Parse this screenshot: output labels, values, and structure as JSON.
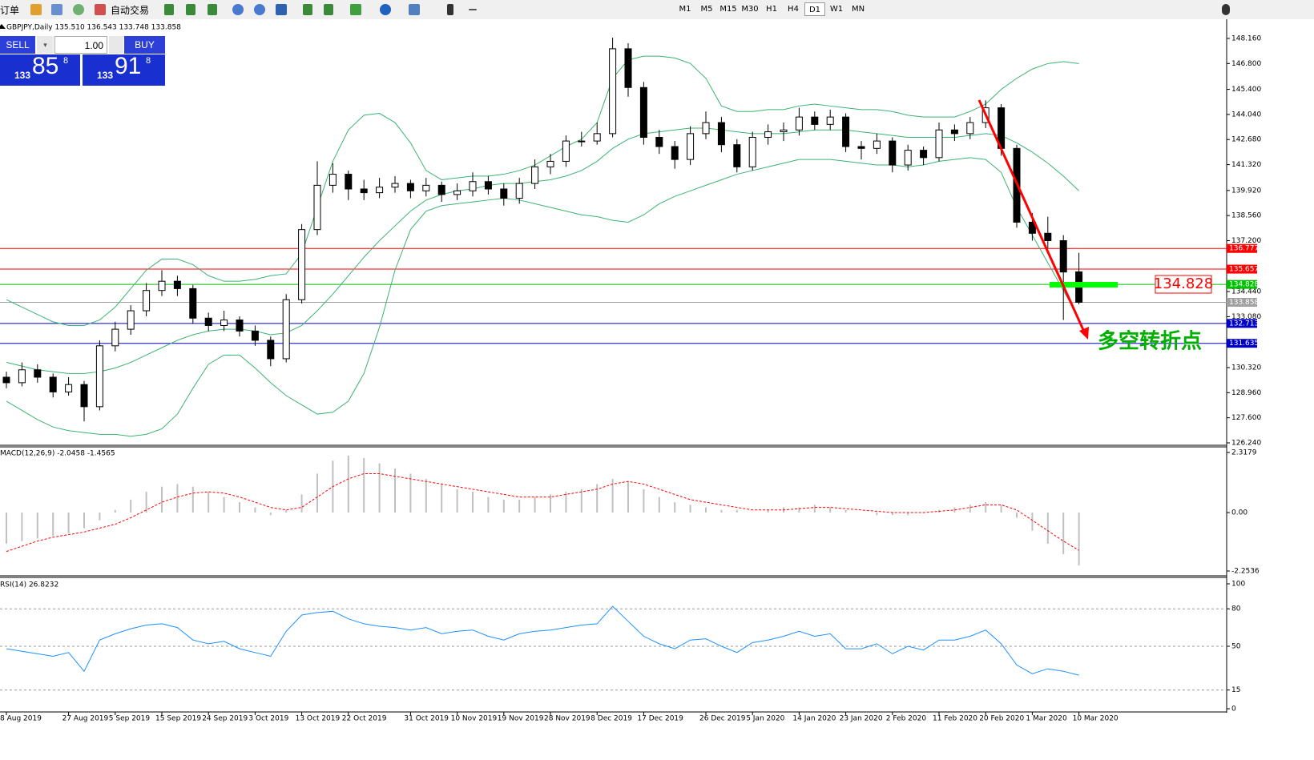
{
  "toolbar": {
    "new_order": "订单",
    "auto_trading": "自动交易",
    "timeframes": [
      "M1",
      "M5",
      "M15",
      "M30",
      "H1",
      "H4",
      "D1",
      "W1",
      "MN"
    ],
    "active_timeframe": "D1"
  },
  "trade_panel": {
    "sell": "SELL",
    "buy": "BUY",
    "lots": "1.00",
    "sell_price": {
      "prefix": "133",
      "big": "85",
      "small": "8"
    },
    "buy_price": {
      "prefix": "133",
      "big": "91",
      "small": "8"
    }
  },
  "chart_data": [
    {
      "type": "candlestick",
      "title": "GBPJPY,Daily  135.510 136.543 133.748 133.858",
      "up_color": "#ffffff",
      "down_color": "#000000",
      "annotation": "多空转折点",
      "ylim": [
        126.153,
        149.158
      ],
      "yticks": [
        {
          "value": 148.16,
          "label": "148.160"
        },
        {
          "value": 146.8,
          "label": "146.800"
        },
        {
          "value": 145.4,
          "label": "145.400"
        },
        {
          "value": 144.04,
          "label": "144.040"
        },
        {
          "value": 142.68,
          "label": "142.680"
        },
        {
          "value": 141.32,
          "label": "141.320"
        },
        {
          "value": 139.92,
          "label": "139.920"
        },
        {
          "value": 138.56,
          "label": "138.560"
        },
        {
          "value": 137.2,
          "label": "137.200"
        },
        {
          "value": 134.44,
          "label": "134.440"
        },
        {
          "value": 133.08,
          "label": "133.080"
        },
        {
          "value": 130.32,
          "label": "130.320"
        },
        {
          "value": 128.96,
          "label": "128.960"
        },
        {
          "value": 127.6,
          "label": "127.600"
        },
        {
          "value": 126.24,
          "label": "126.240"
        }
      ],
      "levels": [
        {
          "value": 136.777,
          "color": "#ff0000"
        },
        {
          "value": 135.657,
          "color": "#ff0000"
        },
        {
          "value": 134.828,
          "color": "#00c000"
        },
        {
          "value": 133.858,
          "color": "#a0a0a0"
        },
        {
          "value": 132.713,
          "color": "#0000c8"
        },
        {
          "value": 131.635,
          "color": "#0000c8"
        }
      ],
      "categories": [
        "8 Aug 2019",
        null,
        null,
        null,
        "27 Aug 2019",
        null,
        null,
        "5 Sep 2019",
        null,
        null,
        "15 Sep 2019",
        null,
        null,
        "24 Sep 2019",
        null,
        null,
        "3 Oct 2019",
        null,
        null,
        "13 Oct 2019",
        null,
        null,
        "22 Oct 2019",
        null,
        null,
        null,
        "31 Oct 2019",
        null,
        null,
        "10 Nov 2019",
        null,
        null,
        "19 Nov 2019",
        null,
        null,
        "28 Nov 2019",
        null,
        null,
        "8 Dec 2019",
        null,
        null,
        "17 Dec 2019",
        null,
        null,
        null,
        "26 Dec 2019",
        null,
        null,
        "5 Jan 2020",
        null,
        null,
        "14 Jan 2020",
        null,
        null,
        "23 Jan 2020",
        null,
        null,
        "2 Feb 2020",
        null,
        null,
        "11 Feb 2020",
        null,
        null,
        "20 Feb 2020",
        null,
        null,
        "1 Mar 2020",
        null,
        null,
        "10 Mar 2020"
      ],
      "candles": [
        [
          129.8,
          130.1,
          129.2,
          129.5
        ],
        [
          129.5,
          130.6,
          129.3,
          130.2
        ],
        [
          130.2,
          130.5,
          129.5,
          129.8
        ],
        [
          129.8,
          130.0,
          128.7,
          129.0
        ],
        [
          129.0,
          129.8,
          128.8,
          129.4
        ],
        [
          129.4,
          129.6,
          127.4,
          128.2
        ],
        [
          128.2,
          131.8,
          128.0,
          131.5
        ],
        [
          131.5,
          132.8,
          131.2,
          132.4
        ],
        [
          132.4,
          133.7,
          132.1,
          133.4
        ],
        [
          133.4,
          134.9,
          133.1,
          134.5
        ],
        [
          134.5,
          135.6,
          134.2,
          135.0
        ],
        [
          135.0,
          135.3,
          134.2,
          134.6
        ],
        [
          134.6,
          134.8,
          132.7,
          133.0
        ],
        [
          133.0,
          133.3,
          132.3,
          132.6
        ],
        [
          132.6,
          133.4,
          132.3,
          132.9
        ],
        [
          132.9,
          133.1,
          132.0,
          132.3
        ],
        [
          132.3,
          132.6,
          131.5,
          131.8
        ],
        [
          131.8,
          132.0,
          130.4,
          130.8
        ],
        [
          130.8,
          134.3,
          130.6,
          134.0
        ],
        [
          134.0,
          138.1,
          133.8,
          137.8
        ],
        [
          137.8,
          141.5,
          137.5,
          140.2
        ],
        [
          140.2,
          141.4,
          139.8,
          140.8
        ],
        [
          140.8,
          141.0,
          139.4,
          140.0
        ],
        [
          140.0,
          140.5,
          139.4,
          139.8
        ],
        [
          139.8,
          140.6,
          139.5,
          140.1
        ],
        [
          140.1,
          140.7,
          139.8,
          140.3
        ],
        [
          140.3,
          140.5,
          139.5,
          139.9
        ],
        [
          139.9,
          140.6,
          139.6,
          140.2
        ],
        [
          140.2,
          140.4,
          139.3,
          139.7
        ],
        [
          139.7,
          140.3,
          139.4,
          139.9
        ],
        [
          139.9,
          140.9,
          139.6,
          140.4
        ],
        [
          140.4,
          140.7,
          139.7,
          140.0
        ],
        [
          140.0,
          140.3,
          139.1,
          139.5
        ],
        [
          139.5,
          140.6,
          139.2,
          140.3
        ],
        [
          140.3,
          141.6,
          140.0,
          141.2
        ],
        [
          141.2,
          141.9,
          140.8,
          141.5
        ],
        [
          141.5,
          142.9,
          141.2,
          142.6
        ],
        [
          142.6,
          143.1,
          142.3,
          142.6
        ],
        [
          142.6,
          143.6,
          142.4,
          143.0
        ],
        [
          143.0,
          148.2,
          142.8,
          147.6
        ],
        [
          147.6,
          147.9,
          145.0,
          145.5
        ],
        [
          145.5,
          145.8,
          142.4,
          142.8
        ],
        [
          142.8,
          143.2,
          141.9,
          142.3
        ],
        [
          142.3,
          142.6,
          141.1,
          141.6
        ],
        [
          141.6,
          143.4,
          141.3,
          143.0
        ],
        [
          143.0,
          144.2,
          142.7,
          143.6
        ],
        [
          143.6,
          143.9,
          142.0,
          142.4
        ],
        [
          142.4,
          142.7,
          140.9,
          141.2
        ],
        [
          141.2,
          143.1,
          141.0,
          142.8
        ],
        [
          142.8,
          143.5,
          142.4,
          143.1
        ],
        [
          143.1,
          143.6,
          142.6,
          143.2
        ],
        [
          143.2,
          144.4,
          142.9,
          143.9
        ],
        [
          143.9,
          144.2,
          143.2,
          143.5
        ],
        [
          143.5,
          144.3,
          143.2,
          143.9
        ],
        [
          143.9,
          144.1,
          142.0,
          142.3
        ],
        [
          142.3,
          142.6,
          141.6,
          142.2
        ],
        [
          142.2,
          143.0,
          141.9,
          142.6
        ],
        [
          142.6,
          142.8,
          140.9,
          141.3
        ],
        [
          141.3,
          142.4,
          141.0,
          142.1
        ],
        [
          142.1,
          142.3,
          141.3,
          141.7
        ],
        [
          141.7,
          143.6,
          141.5,
          143.2
        ],
        [
          143.2,
          143.5,
          142.6,
          143.0
        ],
        [
          143.0,
          143.9,
          142.7,
          143.6
        ],
        [
          143.6,
          144.8,
          143.3,
          144.4
        ],
        [
          144.4,
          144.6,
          141.8,
          142.2
        ],
        [
          142.2,
          142.4,
          137.9,
          138.2
        ],
        [
          138.2,
          138.7,
          137.2,
          137.6
        ],
        [
          137.6,
          138.5,
          136.8,
          137.2
        ],
        [
          137.2,
          137.5,
          132.9,
          135.5
        ],
        [
          135.51,
          136.543,
          133.748,
          133.858
        ]
      ],
      "series": [
        {
          "color": "#3cb371",
          "values": [
            134.0,
            133.6,
            133.2,
            132.8,
            132.6,
            132.6,
            132.9,
            133.6,
            134.6,
            135.6,
            136.2,
            136.2,
            135.9,
            135.3,
            135.0,
            135.0,
            135.1,
            135.3,
            135.4,
            136.5,
            139.0,
            141.5,
            143.2,
            144.0,
            144.1,
            143.6,
            142.5,
            141.0,
            140.5,
            140.6,
            140.7,
            140.7,
            140.8,
            141.0,
            141.3,
            141.8,
            142.3,
            142.7,
            143.6,
            146.0,
            147.0,
            147.2,
            147.2,
            147.1,
            146.8,
            146.0,
            144.5,
            144.2,
            144.2,
            144.3,
            144.3,
            144.5,
            144.6,
            144.5,
            144.4,
            144.3,
            144.3,
            144.2,
            144.0,
            143.9,
            143.9,
            143.9,
            144.2,
            144.6,
            145.4,
            146.0,
            146.5,
            146.8,
            146.9,
            146.8
          ]
        },
        {
          "color": "#3cb371",
          "values": [
            130.6,
            130.4,
            130.2,
            130.1,
            130.0,
            130.0,
            130.1,
            130.3,
            130.6,
            131.0,
            131.4,
            131.8,
            132.1,
            132.3,
            132.4,
            132.4,
            132.3,
            132.1,
            132.2,
            132.6,
            133.4,
            134.3,
            135.3,
            136.3,
            137.2,
            138.0,
            138.8,
            139.4,
            139.7,
            139.9,
            140.0,
            140.2,
            140.3,
            140.3,
            140.4,
            140.5,
            140.7,
            141.0,
            141.5,
            142.2,
            142.7,
            143.0,
            143.1,
            143.2,
            143.3,
            143.3,
            143.2,
            143.1,
            143.0,
            143.0,
            143.0,
            143.1,
            143.2,
            143.2,
            143.2,
            143.1,
            143.0,
            142.9,
            142.8,
            142.8,
            142.8,
            142.8,
            142.9,
            143.0,
            142.9,
            142.5,
            142.0,
            141.4,
            140.7,
            139.9
          ]
        },
        {
          "color": "#3cb371",
          "values": [
            128.5,
            128.0,
            127.5,
            127.1,
            126.9,
            126.8,
            126.7,
            126.7,
            126.6,
            126.7,
            127.0,
            127.8,
            129.2,
            130.5,
            131.0,
            131.0,
            130.3,
            129.5,
            128.8,
            128.3,
            127.8,
            127.9,
            128.5,
            130.0,
            132.5,
            135.6,
            137.8,
            138.8,
            139.1,
            139.2,
            139.3,
            139.4,
            139.5,
            139.4,
            139.2,
            139.0,
            138.8,
            138.6,
            138.5,
            138.3,
            138.2,
            138.6,
            139.2,
            139.6,
            139.9,
            140.2,
            140.5,
            140.8,
            141.0,
            141.2,
            141.4,
            141.6,
            141.6,
            141.6,
            141.5,
            141.4,
            141.3,
            141.3,
            141.2,
            141.3,
            141.5,
            141.6,
            141.7,
            141.6,
            140.9,
            139.0,
            137.5,
            136.0,
            134.5,
            133.0
          ]
        }
      ]
    },
    {
      "type": "macd",
      "title": "MACD(12,26,9) -2.0458 -1.4565",
      "ylim": [
        -2.2536,
        2.3179
      ],
      "yticks": [
        2.3179,
        {
          "value": 0,
          "label": "0.00"
        },
        -2.2536
      ],
      "histogram": {
        "color": "#c0c0c0",
        "values": [
          -1.2,
          -1.1,
          -1.0,
          -0.9,
          -0.8,
          -0.6,
          -0.3,
          0.1,
          0.5,
          0.8,
          1.0,
          1.1,
          1.0,
          0.8,
          0.6,
          0.4,
          0.2,
          -0.1,
          0.1,
          0.7,
          1.5,
          2.0,
          2.2,
          2.1,
          1.9,
          1.7,
          1.5,
          1.3,
          1.1,
          0.9,
          0.8,
          0.6,
          0.5,
          0.5,
          0.6,
          0.7,
          0.8,
          0.9,
          1.1,
          1.3,
          1.2,
          0.9,
          0.6,
          0.4,
          0.3,
          0.2,
          0.1,
          0.1,
          0.0,
          0.1,
          0.2,
          0.2,
          0.3,
          0.2,
          0.1,
          0.0,
          -0.1,
          -0.1,
          -0.1,
          0.0,
          0.1,
          0.2,
          0.3,
          0.4,
          0.3,
          -0.2,
          -0.7,
          -1.2,
          -1.6,
          -2.0458
        ]
      },
      "signal": {
        "color": "#ff0000",
        "values": [
          -1.5,
          -1.3,
          -1.1,
          -0.95,
          -0.85,
          -0.75,
          -0.6,
          -0.45,
          -0.2,
          0.1,
          0.4,
          0.6,
          0.75,
          0.8,
          0.75,
          0.6,
          0.4,
          0.2,
          0.1,
          0.2,
          0.6,
          1.0,
          1.3,
          1.5,
          1.5,
          1.4,
          1.3,
          1.2,
          1.1,
          1.0,
          0.9,
          0.8,
          0.7,
          0.6,
          0.6,
          0.6,
          0.7,
          0.8,
          0.9,
          1.1,
          1.2,
          1.1,
          0.9,
          0.7,
          0.5,
          0.4,
          0.3,
          0.2,
          0.1,
          0.1,
          0.1,
          0.15,
          0.2,
          0.2,
          0.15,
          0.1,
          0.05,
          0.0,
          0.0,
          0.0,
          0.05,
          0.1,
          0.2,
          0.3,
          0.3,
          0.1,
          -0.3,
          -0.7,
          -1.1,
          -1.4565
        ]
      }
    },
    {
      "type": "line",
      "title": "RSI(14) 26.8232",
      "ylim": [
        0,
        100
      ],
      "yticks": [
        100,
        80,
        50,
        15,
        0
      ],
      "color": "#1e90ff",
      "values": [
        48,
        46,
        44,
        42,
        45,
        30,
        55,
        60,
        64,
        67,
        68,
        65,
        55,
        52,
        54,
        48,
        45,
        42,
        62,
        75,
        77,
        78,
        72,
        68,
        66,
        65,
        63,
        65,
        60,
        62,
        63,
        58,
        55,
        60,
        62,
        63,
        65,
        67,
        68,
        82,
        70,
        58,
        52,
        48,
        55,
        56,
        50,
        45,
        53,
        55,
        58,
        62,
        58,
        60,
        48,
        48,
        52,
        44,
        50,
        47,
        55,
        55,
        58,
        63,
        52,
        35,
        28,
        32,
        30,
        26.8232
      ]
    }
  ]
}
